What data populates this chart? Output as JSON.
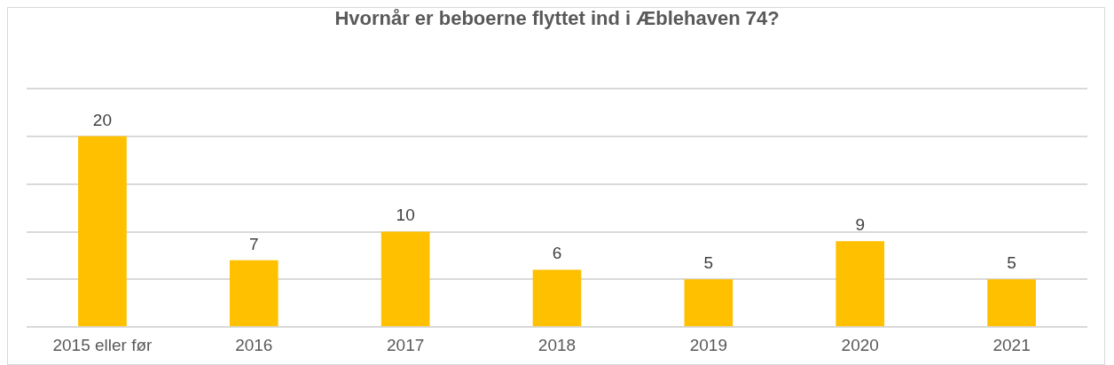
{
  "chart_data": {
    "type": "bar",
    "title": "Hvornår er beboerne flyttet ind i Æblehaven 74?",
    "categories": [
      "2015 eller før",
      "2016",
      "2017",
      "2018",
      "2019",
      "2020",
      "2021"
    ],
    "values": [
      20,
      7,
      10,
      6,
      5,
      9,
      5
    ],
    "color": "#ffc000",
    "ylim": [
      0,
      25
    ],
    "yticks": [
      {
        "value": 0,
        "label": null
      },
      {
        "value": 5,
        "label": null
      },
      {
        "value": 10,
        "label": null
      },
      {
        "value": 15,
        "label": null
      },
      {
        "value": 20,
        "label": null
      },
      {
        "value": 25,
        "label": null
      }
    ],
    "tick_labels": "x",
    "grid": "y",
    "data_labels": true,
    "legend": false
  }
}
